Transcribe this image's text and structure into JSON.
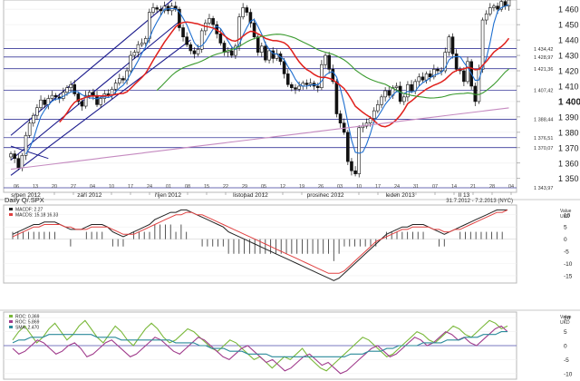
{
  "chart_data": [
    {
      "type": "candlestick",
      "title": "",
      "y_axis_side": "right",
      "ylim": [
        1341,
        1466
      ],
      "y_ticks": [
        1350,
        1360,
        1370,
        1380,
        1390,
        1400,
        1410,
        1420,
        1430,
        1440,
        1450,
        1460
      ],
      "y_tick_labels": [
        "1 350",
        "1 360",
        "1 370",
        "1 380",
        "1 390",
        "1 400",
        "1 410",
        "1 420",
        "1 430",
        "1 440",
        "1 450",
        "1 460"
      ],
      "highlight_tick": "1 400",
      "x_day_ticks": [
        "06",
        "13",
        "20",
        "27",
        "04",
        "10",
        "17",
        "24",
        "01",
        "08",
        "15",
        "22",
        "29",
        "05",
        "12",
        "19",
        "26",
        "03",
        "10",
        "17",
        "24",
        "31",
        "07",
        "14",
        "21",
        "28",
        "04"
      ],
      "x_month_labels": [
        {
          "label": "srpen 2012",
          "at_index": 4
        },
        {
          "label": "září 2012",
          "at_index": 21
        },
        {
          "label": "říjen 2012",
          "at_index": 42
        },
        {
          "label": "listopad 2012",
          "at_index": 64
        },
        {
          "label": "prosinec 2012",
          "at_index": 84
        },
        {
          "label": "leden 2013",
          "at_index": 104
        },
        {
          "label": "II 13",
          "at_index": 121
        }
      ],
      "levels": [
        {
          "value": 1434.42,
          "label": "1 434,42"
        },
        {
          "value": 1428.97,
          "label": "1 428,97"
        },
        {
          "value": 1421.36,
          "label": "1 421,36"
        },
        {
          "value": 1407.42,
          "label": "1 407,42"
        },
        {
          "value": 1388.44,
          "label": "1 388,44"
        },
        {
          "value": 1376.51,
          "label": "1 376,51"
        },
        {
          "value": 1370.07,
          "label": "1 370,07"
        },
        {
          "value": 1343.97,
          "label": "1 343,97"
        }
      ],
      "close": [
        1366,
        1363,
        1357,
        1365,
        1378,
        1386,
        1391,
        1396,
        1401,
        1398,
        1402,
        1404,
        1403,
        1402,
        1406,
        1409,
        1411,
        1405,
        1400,
        1397,
        1404,
        1406,
        1404,
        1398,
        1402,
        1405,
        1404,
        1408,
        1412,
        1415,
        1414,
        1420,
        1430,
        1432,
        1437,
        1438,
        1441,
        1458,
        1461,
        1460,
        1459,
        1462,
        1459,
        1462,
        1460,
        1448,
        1442,
        1437,
        1433,
        1431,
        1434,
        1446,
        1451,
        1454,
        1450,
        1444,
        1438,
        1432,
        1433,
        1430,
        1436,
        1455,
        1461,
        1458,
        1451,
        1442,
        1432,
        1436,
        1427,
        1433,
        1428,
        1431,
        1426,
        1418,
        1411,
        1409,
        1408,
        1410,
        1412,
        1411,
        1412,
        1410,
        1409,
        1424,
        1430,
        1421,
        1413,
        1392,
        1386,
        1380,
        1361,
        1355,
        1353,
        1383,
        1384,
        1386,
        1389,
        1394,
        1398,
        1403,
        1407,
        1404,
        1409,
        1410,
        1400,
        1403,
        1411,
        1407,
        1413,
        1416,
        1414,
        1418,
        1416,
        1421,
        1420,
        1420,
        1432,
        1442,
        1431,
        1421,
        1420,
        1413,
        1426,
        1410,
        1400,
        1421,
        1453,
        1457,
        1461,
        1462,
        1460,
        1465,
        1462,
        1466
      ],
      "overlays": [
        {
          "name": "SMA fast",
          "color": "#1e6fd0"
        },
        {
          "name": "SMA mid",
          "color": "#e0201c"
        },
        {
          "name": "SMA slow",
          "color": "#3a9a2e"
        },
        {
          "name": "SMA long",
          "color": "#c58ac0"
        }
      ],
      "trend_channel": {
        "color": "#1a1a8c"
      }
    },
    {
      "type": "line",
      "title": "Daily Q/.SPX",
      "date_range": "31.7.2012 - 7.2.2013 (NYC)",
      "legend": [
        "MACDF: 2.27",
        "MACDS: 15.18 16.33"
      ],
      "axis_header": [
        "Value",
        "UKD"
      ],
      "ylim": [
        -18,
        14
      ],
      "y_ticks": [
        10,
        5,
        0,
        -5,
        -10,
        -15
      ],
      "series": [
        {
          "name": "MACD",
          "color": "#222222",
          "values": [
            2,
            3,
            4,
            5,
            6,
            6,
            7,
            7,
            7,
            6,
            5,
            4,
            4,
            4,
            5,
            6,
            6,
            6,
            5,
            3,
            2,
            1,
            2,
            3,
            4,
            5,
            6,
            8,
            9,
            10,
            11,
            11,
            12,
            12,
            11,
            10,
            9,
            8,
            7,
            6,
            5,
            3,
            2,
            1,
            0,
            -1,
            -2,
            -3,
            -4,
            -5,
            -6,
            -7,
            -8,
            -9,
            -10,
            -11,
            -12,
            -13,
            -14,
            -15,
            -16,
            -17,
            -16,
            -14,
            -12,
            -10,
            -8,
            -6,
            -4,
            -2,
            0,
            2,
            3,
            4,
            5,
            5,
            6,
            6,
            6,
            5,
            4,
            3,
            2,
            3,
            4,
            5,
            6,
            7,
            8,
            9,
            10,
            11,
            12,
            12,
            12
          ]
        },
        {
          "name": "Signal",
          "color": "#e04040",
          "values": [
            1,
            2,
            3,
            4,
            5,
            5,
            6,
            6,
            6,
            6,
            5,
            5,
            4,
            4,
            4,
            5,
            5,
            5,
            5,
            4,
            3,
            2,
            2,
            2,
            3,
            4,
            5,
            6,
            7,
            8,
            9,
            10,
            10,
            11,
            11,
            10,
            10,
            9,
            8,
            7,
            6,
            5,
            4,
            3,
            2,
            1,
            0,
            -1,
            -2,
            -3,
            -4,
            -5,
            -6,
            -7,
            -8,
            -9,
            -10,
            -11,
            -12,
            -13,
            -14,
            -14,
            -14,
            -13,
            -11,
            -9,
            -7,
            -5,
            -3,
            -1,
            0,
            1,
            2,
            3,
            4,
            4,
            5,
            5,
            5,
            5,
            4,
            4,
            3,
            3,
            4,
            4,
            5,
            6,
            7,
            8,
            9,
            10,
            11,
            11,
            12
          ]
        }
      ]
    },
    {
      "type": "line",
      "legend": [
        "ROC: 0.369",
        "ROC: 5.869",
        "SMA: 2.470"
      ],
      "axis_header": [
        "Value",
        "UKD"
      ],
      "ylim": [
        -12,
        12
      ],
      "y_ticks": [
        10,
        5,
        0,
        -5,
        -10
      ],
      "series": [
        {
          "name": "ROC",
          "color": "#7ab83a",
          "values": [
            2,
            5,
            7,
            4,
            1,
            3,
            6,
            8,
            5,
            2,
            4,
            7,
            9,
            6,
            3,
            1,
            4,
            7,
            5,
            2,
            0,
            3,
            6,
            8,
            6,
            3,
            1,
            2,
            4,
            6,
            5,
            3,
            1,
            -1,
            -2,
            0,
            2,
            1,
            -1,
            -3,
            -5,
            -4,
            -6,
            -8,
            -6,
            -4,
            -5,
            -3,
            -1,
            -4,
            -6,
            -8,
            -9,
            -7,
            -5,
            -3,
            -1,
            1,
            3,
            2,
            0,
            -2,
            -4,
            -3,
            -1,
            1,
            3,
            5,
            4,
            2,
            1,
            3,
            5,
            7,
            6,
            4,
            3,
            5,
            7,
            9,
            8,
            6,
            7
          ]
        },
        {
          "name": "ROC",
          "color": "#a03c8c",
          "values": [
            -1,
            -3,
            -2,
            0,
            2,
            1,
            -1,
            -3,
            -2,
            0,
            1,
            -1,
            -4,
            -3,
            -1,
            1,
            2,
            0,
            -2,
            -4,
            -3,
            -1,
            1,
            3,
            2,
            0,
            -2,
            -3,
            -1,
            1,
            3,
            2,
            0,
            -2,
            -4,
            -5,
            -3,
            -1,
            0,
            -2,
            -4,
            -6,
            -5,
            -7,
            -9,
            -8,
            -6,
            -4,
            -3,
            -5,
            -7,
            -6,
            -8,
            -10,
            -9,
            -7,
            -5,
            -3,
            -1,
            0,
            -2,
            -4,
            -3,
            -1,
            1,
            3,
            2,
            0,
            1,
            3,
            5,
            4,
            2,
            3,
            1,
            0,
            2,
            4,
            6,
            7,
            5
          ]
        },
        {
          "name": "SMA",
          "color": "#2a8a9a",
          "values": [
            1,
            2,
            2,
            3,
            3,
            3,
            4,
            4,
            4,
            4,
            4,
            4,
            4,
            4,
            3,
            3,
            3,
            3,
            2,
            2,
            2,
            2,
            2,
            2,
            2,
            2,
            2,
            1,
            1,
            1,
            1,
            0,
            0,
            -1,
            -1,
            -1,
            -2,
            -2,
            -2,
            -3,
            -3,
            -3,
            -3,
            -4,
            -4,
            -4,
            -4,
            -4,
            -4,
            -4,
            -4,
            -4,
            -4,
            -4,
            -4,
            -4,
            -3,
            -3,
            -3,
            -2,
            -2,
            -2,
            -1,
            -1,
            0,
            0,
            0,
            0,
            1,
            1,
            1,
            1,
            2,
            2,
            2,
            3,
            3,
            3,
            4,
            4,
            4,
            5,
            5
          ]
        }
      ]
    }
  ]
}
